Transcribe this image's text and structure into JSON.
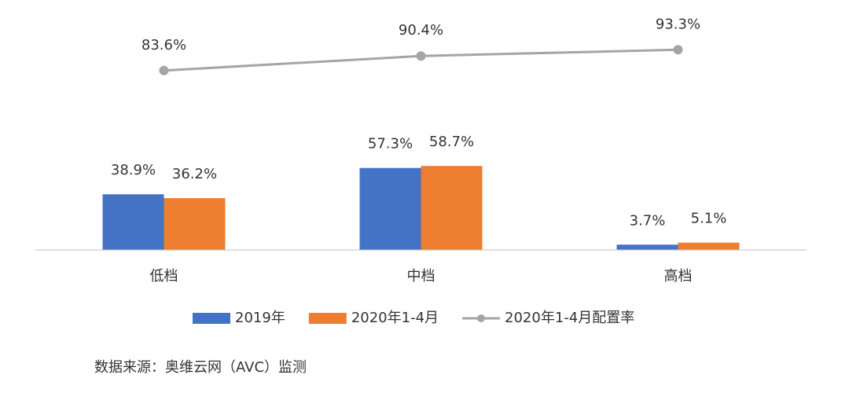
{
  "chart_data": {
    "type": "bar",
    "categories": [
      "低档",
      "中档",
      "高档"
    ],
    "series": [
      {
        "name": "2019年",
        "color": "#4472c4",
        "type": "bar",
        "values": [
          38.9,
          57.3,
          3.7
        ],
        "value_labels": [
          "38.9%",
          "57.3%",
          "3.7%"
        ]
      },
      {
        "name": "2020年1-4月",
        "color": "#ed7d31",
        "type": "bar",
        "values": [
          36.2,
          58.7,
          5.1
        ],
        "value_labels": [
          "36.2%",
          "58.7%",
          "5.1%"
        ]
      },
      {
        "name": "2020年1-4月配置率",
        "color": "#a5a5a5",
        "type": "line",
        "axis": "y2",
        "values": [
          83.6,
          90.4,
          93.3
        ],
        "value_labels": [
          "83.6%",
          "90.4%",
          "93.3%"
        ]
      }
    ],
    "ylim": [
      0,
      150
    ],
    "y2lim": [
      0,
      100
    ],
    "legend": "bottom",
    "source": "数据来源：奥维云网（AVC）监测"
  }
}
